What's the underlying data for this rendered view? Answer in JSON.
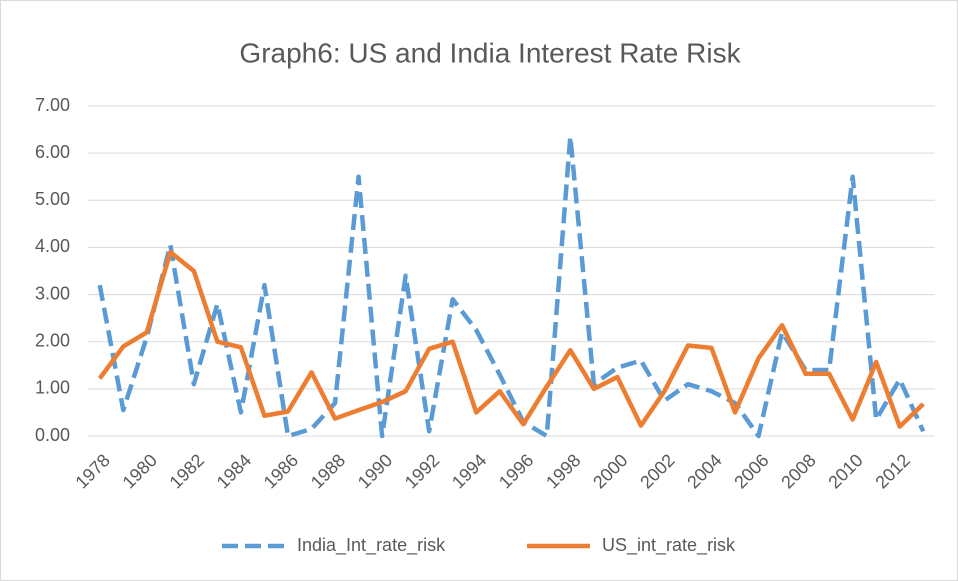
{
  "chart_data": {
    "type": "line",
    "title": "Graph6: US and India Interest Rate Risk",
    "categories": [
      "1978",
      null,
      "1980",
      null,
      "1982",
      null,
      "1984",
      null,
      "1986",
      null,
      "1988",
      null,
      "1990",
      null,
      "1992",
      null,
      "1994",
      null,
      "1996",
      null,
      "1998",
      null,
      "2000",
      null,
      "2002",
      null,
      "2004",
      null,
      "2006",
      null,
      "2008",
      null,
      "2010",
      null,
      "2012",
      null
    ],
    "series": [
      {
        "name": "India_Int_rate_risk",
        "color": "#5b9bd5",
        "dashed": true,
        "values": [
          3.2,
          0.55,
          2.1,
          4.05,
          1.1,
          2.8,
          0.5,
          3.2,
          0.0,
          0.15,
          0.7,
          5.5,
          0.0,
          3.4,
          0.1,
          2.9,
          2.25,
          1.3,
          0.3,
          0.0,
          6.35,
          1.1,
          1.45,
          1.6,
          0.75,
          1.1,
          0.95,
          0.7,
          0.0,
          2.2,
          1.4,
          1.4,
          5.5,
          0.35,
          1.2,
          0.1
        ]
      },
      {
        "name": "US_int_rate_risk",
        "color": "#ed7d31",
        "dashed": false,
        "values": [
          1.22,
          1.9,
          2.2,
          3.9,
          3.5,
          2.0,
          1.88,
          0.43,
          0.52,
          1.35,
          0.37,
          0.55,
          0.72,
          0.95,
          1.85,
          2.0,
          0.5,
          0.95,
          0.25,
          1.05,
          1.82,
          1.0,
          1.25,
          0.22,
          0.95,
          1.92,
          1.87,
          0.5,
          1.65,
          2.35,
          1.32,
          1.32,
          0.35,
          1.57,
          0.2,
          0.68
        ]
      }
    ],
    "ylim": [
      0,
      7
    ],
    "yticks": [
      {
        "value": 0,
        "label": "0.00"
      },
      {
        "value": 1,
        "label": "1.00"
      },
      {
        "value": 2,
        "label": "2.00"
      },
      {
        "value": 3,
        "label": "3.00"
      },
      {
        "value": 4,
        "label": "4.00"
      },
      {
        "value": 5,
        "label": "5.00"
      },
      {
        "value": 6,
        "label": "6.00"
      },
      {
        "value": 7,
        "label": "7.00"
      }
    ],
    "grid": true,
    "legend": "bottom"
  }
}
